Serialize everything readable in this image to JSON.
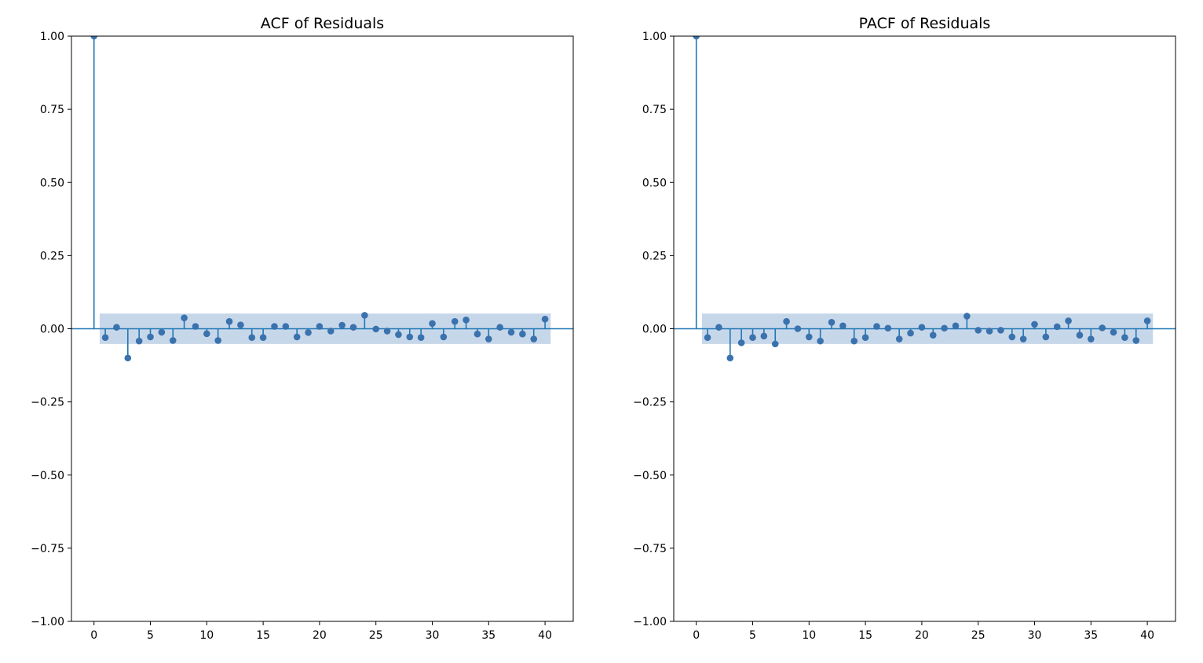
{
  "chart_data": [
    {
      "type": "stem",
      "title": "ACF of Residuals",
      "xlabel": "",
      "ylabel": "",
      "xlim": [
        -2,
        42.5
      ],
      "ylim": [
        -1.0,
        1.0
      ],
      "x_ticks": [
        0,
        5,
        10,
        15,
        20,
        25,
        30,
        35,
        40
      ],
      "y_ticks": [
        -1.0,
        -0.75,
        -0.5,
        -0.25,
        0.0,
        0.25,
        0.5,
        0.75,
        1.0
      ],
      "x_tick_labels": [
        "0",
        "5",
        "10",
        "15",
        "20",
        "25",
        "30",
        "35",
        "40"
      ],
      "y_tick_labels": [
        "−1.00",
        "−0.75",
        "−0.50",
        "−0.25",
        "0.00",
        "0.25",
        "0.50",
        "0.75",
        "1.00"
      ],
      "grid": false,
      "confidence_band": {
        "lag_start": 0.5,
        "lag_end": 40.5,
        "upper": 0.052,
        "lower": -0.052
      },
      "lags": [
        0,
        1,
        2,
        3,
        4,
        5,
        6,
        7,
        8,
        9,
        10,
        11,
        12,
        13,
        14,
        15,
        16,
        17,
        18,
        19,
        20,
        21,
        22,
        23,
        24,
        25,
        26,
        27,
        28,
        29,
        30,
        31,
        32,
        33,
        34,
        35,
        36,
        37,
        38,
        39,
        40
      ],
      "values": [
        1.0,
        -0.03,
        0.005,
        -0.1,
        -0.042,
        -0.028,
        -0.012,
        -0.04,
        0.037,
        0.008,
        -0.017,
        -0.04,
        0.025,
        0.013,
        -0.03,
        -0.03,
        0.008,
        0.008,
        -0.028,
        -0.013,
        0.008,
        -0.008,
        0.012,
        0.005,
        0.046,
        -0.001,
        -0.008,
        -0.02,
        -0.028,
        -0.03,
        0.018,
        -0.028,
        0.025,
        0.03,
        -0.018,
        -0.035,
        0.005,
        -0.012,
        -0.018,
        -0.035,
        0.033
      ],
      "colors": {
        "stem": "#1f77b4",
        "marker": "#3a72ad",
        "band": "#c7d7ea",
        "baseline": "#1f77b4",
        "axes": "#000000"
      }
    },
    {
      "type": "stem",
      "title": "PACF of Residuals",
      "xlabel": "",
      "ylabel": "",
      "xlim": [
        -2,
        42.5
      ],
      "ylim": [
        -1.0,
        1.0
      ],
      "x_ticks": [
        0,
        5,
        10,
        15,
        20,
        25,
        30,
        35,
        40
      ],
      "y_ticks": [
        -1.0,
        -0.75,
        -0.5,
        -0.25,
        0.0,
        0.25,
        0.5,
        0.75,
        1.0
      ],
      "x_tick_labels": [
        "0",
        "5",
        "10",
        "15",
        "20",
        "25",
        "30",
        "35",
        "40"
      ],
      "y_tick_labels": [
        "−1.00",
        "−0.75",
        "−0.50",
        "−0.25",
        "0.00",
        "0.25",
        "0.50",
        "0.75",
        "1.00"
      ],
      "grid": false,
      "confidence_band": {
        "lag_start": 0.5,
        "lag_end": 40.5,
        "upper": 0.052,
        "lower": -0.052
      },
      "lags": [
        0,
        1,
        2,
        3,
        4,
        5,
        6,
        7,
        8,
        9,
        10,
        11,
        12,
        13,
        14,
        15,
        16,
        17,
        18,
        19,
        20,
        21,
        22,
        23,
        24,
        25,
        26,
        27,
        28,
        29,
        30,
        31,
        32,
        33,
        34,
        35,
        36,
        37,
        38,
        39,
        40
      ],
      "values": [
        1.0,
        -0.03,
        0.005,
        -0.1,
        -0.048,
        -0.03,
        -0.025,
        -0.052,
        0.025,
        0.0,
        -0.028,
        -0.042,
        0.022,
        0.01,
        -0.042,
        -0.03,
        0.008,
        0.002,
        -0.035,
        -0.015,
        0.005,
        -0.022,
        0.002,
        0.01,
        0.043,
        -0.005,
        -0.008,
        -0.005,
        -0.028,
        -0.035,
        0.015,
        -0.028,
        0.007,
        0.027,
        -0.022,
        -0.035,
        0.003,
        -0.012,
        -0.03,
        -0.04,
        0.027
      ],
      "colors": {
        "stem": "#1f77b4",
        "marker": "#3a72ad",
        "band": "#c7d7ea",
        "baseline": "#1f77b4",
        "axes": "#000000"
      }
    }
  ]
}
